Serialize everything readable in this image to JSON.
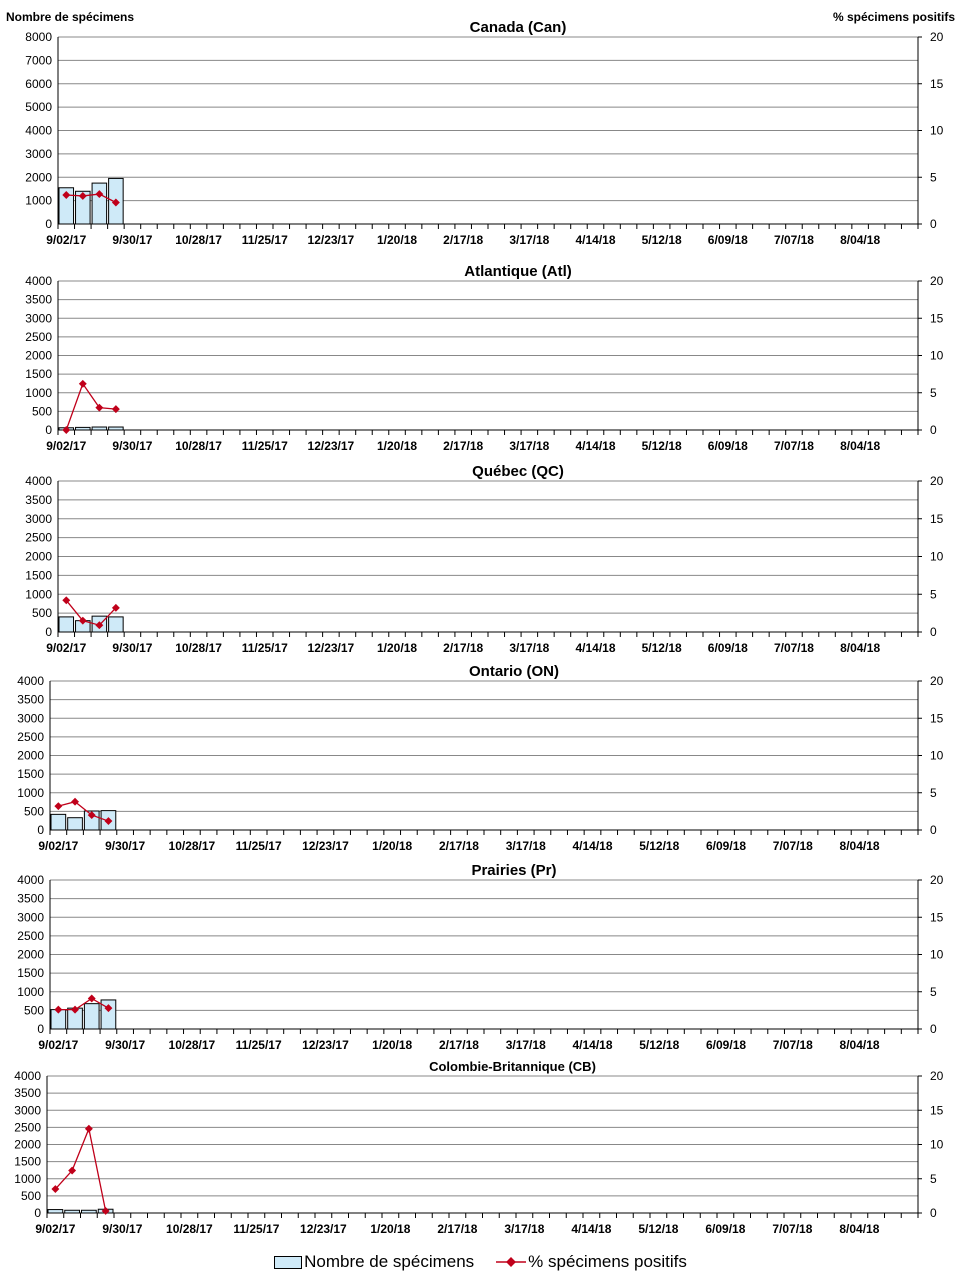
{
  "header": {
    "left_axis_title": "Nombre de spécimens",
    "right_axis_title": "% spécimens positifs"
  },
  "colors": {
    "bar_fill": "#cfeaf8",
    "bar_stroke": "#000000",
    "line": "#c0001a",
    "grid": "#888888"
  },
  "legend": {
    "bars_label": "Nombre de spécimens",
    "line_label": "% spécimens positifs"
  },
  "chart_data": [
    {
      "type": "bar+line",
      "title": "Canada (Can)",
      "x_tick_labels": [
        "9/02/17",
        "9/30/17",
        "10/28/17",
        "11/25/17",
        "12/23/17",
        "1/20/18",
        "2/17/18",
        "3/17/18",
        "4/14/18",
        "5/12/18",
        "6/09/18",
        "7/07/18",
        "8/04/18"
      ],
      "weeks": 52,
      "y_left": {
        "min": 0,
        "max": 8000,
        "ticks": [
          0,
          1000,
          2000,
          3000,
          4000,
          5000,
          6000,
          7000,
          8000
        ]
      },
      "y_right": {
        "min": 0,
        "max": 20,
        "ticks": [
          0,
          5,
          10,
          15,
          20
        ]
      },
      "bars": {
        "name": "Nombre de spécimens",
        "values": [
          1550,
          1400,
          1750,
          1950
        ]
      },
      "line": {
        "name": "% spécimens positifs",
        "values": [
          3.1,
          3.0,
          3.2,
          2.3
        ]
      }
    },
    {
      "type": "bar+line",
      "title": "Atlantique (Atl)",
      "x_tick_labels": [
        "9/02/17",
        "9/30/17",
        "10/28/17",
        "11/25/17",
        "12/23/17",
        "1/20/18",
        "2/17/18",
        "3/17/18",
        "4/14/18",
        "5/12/18",
        "6/09/18",
        "7/07/18",
        "8/04/18"
      ],
      "weeks": 52,
      "y_left": {
        "min": 0,
        "max": 4000,
        "ticks": [
          0,
          500,
          1000,
          1500,
          2000,
          2500,
          3000,
          3500,
          4000
        ]
      },
      "y_right": {
        "min": 0,
        "max": 20,
        "ticks": [
          0,
          5,
          10,
          15,
          20
        ]
      },
      "bars": {
        "name": "Nombre de spécimens",
        "values": [
          60,
          70,
          80,
          80
        ]
      },
      "line": {
        "name": "% spécimens positifs",
        "values": [
          0,
          6.2,
          3.0,
          2.8
        ]
      }
    },
    {
      "type": "bar+line",
      "title": "Québec (QC)",
      "x_tick_labels": [
        "9/02/17",
        "9/30/17",
        "10/28/17",
        "11/25/17",
        "12/23/17",
        "1/20/18",
        "2/17/18",
        "3/17/18",
        "4/14/18",
        "5/12/18",
        "6/09/18",
        "7/07/18",
        "8/04/18"
      ],
      "weeks": 52,
      "y_left": {
        "min": 0,
        "max": 4000,
        "ticks": [
          0,
          500,
          1000,
          1500,
          2000,
          2500,
          3000,
          3500,
          4000
        ]
      },
      "y_right": {
        "min": 0,
        "max": 20,
        "ticks": [
          0,
          5,
          10,
          15,
          20
        ]
      },
      "bars": {
        "name": "Nombre de spécimens",
        "values": [
          400,
          300,
          420,
          400
        ]
      },
      "line": {
        "name": "% spécimens positifs",
        "values": [
          4.2,
          1.5,
          0.9,
          3.2
        ]
      }
    },
    {
      "type": "bar+line",
      "title": "Ontario (ON)",
      "x_tick_labels": [
        "9/02/17",
        "9/30/17",
        "10/28/17",
        "11/25/17",
        "12/23/17",
        "1/20/18",
        "2/17/18",
        "3/17/18",
        "4/14/18",
        "5/12/18",
        "6/09/18",
        "7/07/18",
        "8/04/18"
      ],
      "weeks": 52,
      "y_left": {
        "min": 0,
        "max": 4000,
        "ticks": [
          0,
          500,
          1000,
          1500,
          2000,
          2500,
          3000,
          3500,
          4000
        ]
      },
      "y_right": {
        "min": 0,
        "max": 20,
        "ticks": [
          0,
          5,
          10,
          15,
          20
        ]
      },
      "bars": {
        "name": "Nombre de spécimens",
        "values": [
          420,
          330,
          510,
          520
        ]
      },
      "line": {
        "name": "% spécimens positifs",
        "values": [
          3.2,
          3.8,
          2.0,
          1.2
        ]
      }
    },
    {
      "type": "bar+line",
      "title": "Prairies (Pr)",
      "x_tick_labels": [
        "9/02/17",
        "9/30/17",
        "10/28/17",
        "11/25/17",
        "12/23/17",
        "1/20/18",
        "2/17/18",
        "3/17/18",
        "4/14/18",
        "5/12/18",
        "6/09/18",
        "7/07/18",
        "8/04/18"
      ],
      "weeks": 52,
      "y_left": {
        "min": 0,
        "max": 4000,
        "ticks": [
          0,
          500,
          1000,
          1500,
          2000,
          2500,
          3000,
          3500,
          4000
        ]
      },
      "y_right": {
        "min": 0,
        "max": 20,
        "ticks": [
          0,
          5,
          10,
          15,
          20
        ]
      },
      "bars": {
        "name": "Nombre de spécimens",
        "values": [
          520,
          560,
          680,
          780
        ]
      },
      "line": {
        "name": "% spécimens positifs",
        "values": [
          2.6,
          2.6,
          4.1,
          2.8
        ]
      }
    },
    {
      "type": "bar+line",
      "title": "Colombie-Britannique (CB)",
      "x_tick_labels": [
        "9/02/17",
        "9/30/17",
        "10/28/17",
        "11/25/17",
        "12/23/17",
        "1/20/18",
        "2/17/18",
        "3/17/18",
        "4/14/18",
        "5/12/18",
        "6/09/18",
        "7/07/18",
        "8/04/18"
      ],
      "weeks": 52,
      "y_left": {
        "min": 0,
        "max": 4000,
        "ticks": [
          0,
          500,
          1000,
          1500,
          2000,
          2500,
          3000,
          3500,
          4000
        ]
      },
      "y_right": {
        "min": 0,
        "max": 20,
        "ticks": [
          0,
          5,
          10,
          15,
          20
        ]
      },
      "bars": {
        "name": "Nombre de spécimens",
        "values": [
          100,
          80,
          80,
          110
        ]
      },
      "line": {
        "name": "% spécimens positifs",
        "values": [
          3.5,
          6.2,
          12.3,
          0.3
        ]
      }
    }
  ]
}
